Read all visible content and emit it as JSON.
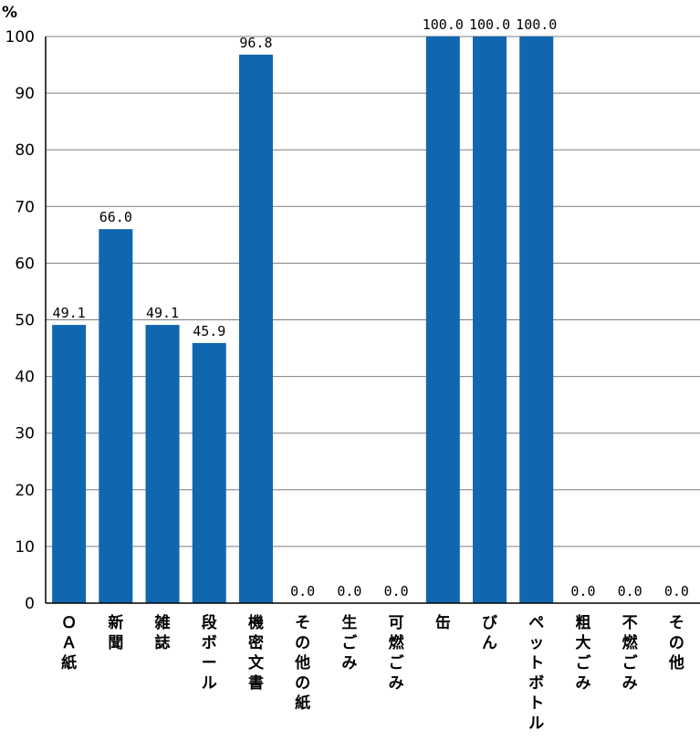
{
  "chart_data": {
    "type": "bar",
    "unit": "%",
    "ylim": [
      0,
      100
    ],
    "yticks": [
      0,
      10,
      20,
      30,
      40,
      50,
      60,
      70,
      80,
      90,
      100
    ],
    "grid": true,
    "bar_color": "#1166b0",
    "categories": [
      "ＯＡ紙",
      "新聞",
      "雑誌",
      "段ボール",
      "機密文書",
      "その他の紙",
      "生ごみ",
      "可燃ごみ",
      "缶",
      "びん",
      "ペットボトル",
      "粗大ごみ",
      "不燃ごみ",
      "その他"
    ],
    "values": [
      49.1,
      66.0,
      49.1,
      45.9,
      96.8,
      0.0,
      0.0,
      0.0,
      100.0,
      100.0,
      100.0,
      0.0,
      0.0,
      0.0
    ],
    "value_labels": [
      "49.1",
      "66.0",
      "49.1",
      "45.9",
      "96.8",
      "0.0",
      "0.0",
      "0.0",
      "100.0",
      "100.0",
      "100.0",
      "0.0",
      "0.0",
      "0.0"
    ]
  }
}
